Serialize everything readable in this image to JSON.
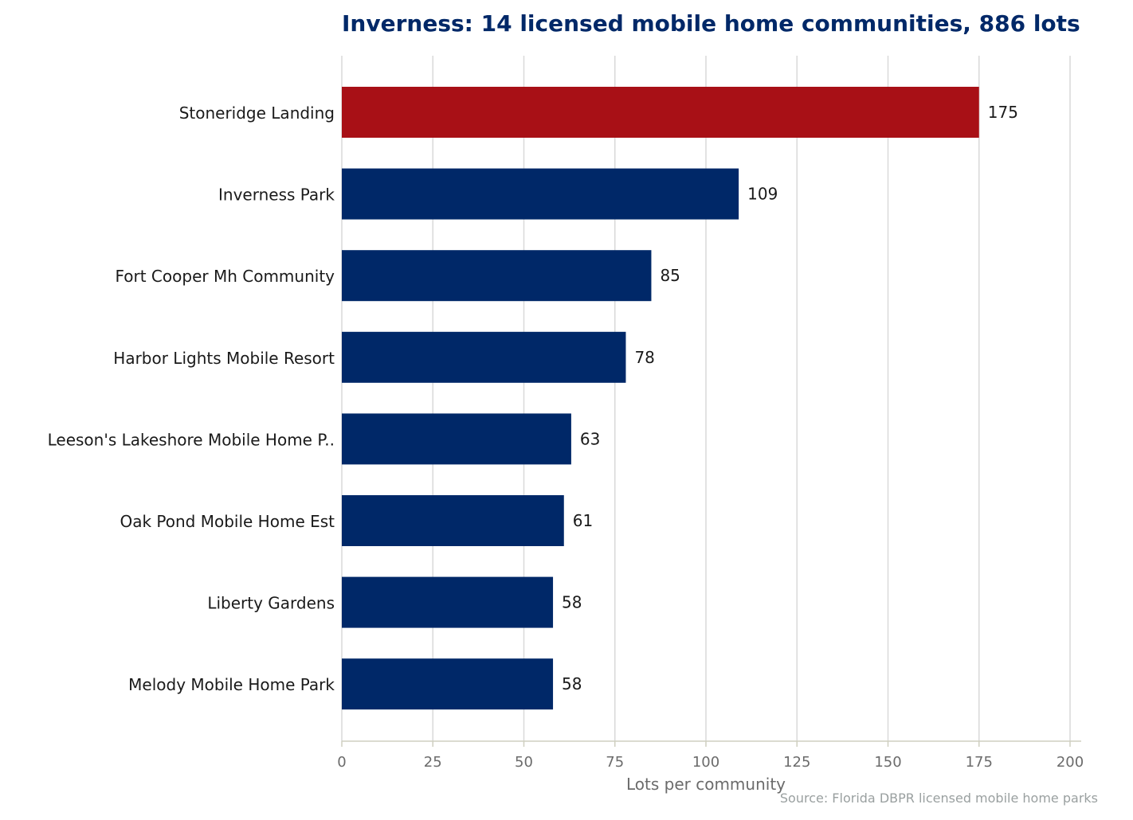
{
  "chart_data": {
    "type": "bar",
    "orientation": "horizontal",
    "title": "Inverness: 14 licensed mobile home communities, 886 lots",
    "xlabel": "Lots per community",
    "ylabel": "",
    "xlim": [
      0,
      200
    ],
    "xticks": [
      0,
      25,
      50,
      75,
      100,
      125,
      150,
      175,
      200
    ],
    "grid": "vertical",
    "categories": [
      "Stoneridge Landing",
      "Inverness Park",
      "Fort Cooper Mh Community",
      "Harbor Lights Mobile Resort",
      "Leeson's Lakeshore Mobile Home P..",
      "Oak Pond Mobile Home Est",
      "Liberty Gardens",
      "Melody Mobile Home Park"
    ],
    "values": [
      175,
      109,
      85,
      78,
      63,
      61,
      58,
      58
    ],
    "highlight_index": 0,
    "colors": {
      "highlight": "#a81016",
      "bar": "#002868",
      "grid": "#d9d9d9",
      "axis": "#cfcfc0"
    },
    "source": "Source: Florida DBPR licensed mobile home parks"
  }
}
